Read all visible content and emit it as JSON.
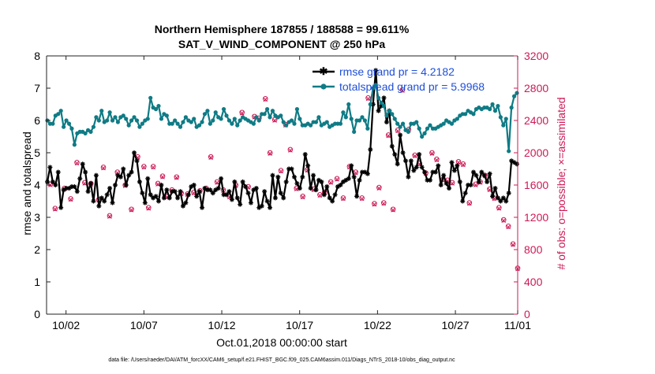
{
  "chart_data": {
    "type": "line",
    "title": "Northern Hemisphere 187855 / 188588 = 99.611%",
    "subtitle": "SAT_V_WIND_COMPONENT @ 250 hPa",
    "xlabel": "Oct.01,2018 00:00:00 start",
    "ylabel_left": "rmse and totalspread",
    "ylabel_right": "# of obs: o=possible; ×=assimilated",
    "xlim": [
      0.75,
      31.0
    ],
    "ylim_left": [
      0,
      8
    ],
    "ylim_right": [
      0,
      3200
    ],
    "x_ticks": [
      {
        "label": "10/02",
        "x": 2
      },
      {
        "label": "10/07",
        "x": 7
      },
      {
        "label": "10/12",
        "x": 12
      },
      {
        "label": "10/17",
        "x": 17
      },
      {
        "label": "10/22",
        "x": 22
      },
      {
        "label": "10/27",
        "x": 27
      },
      {
        "label": "11/01",
        "x": 32
      }
    ],
    "y_ticks_left": [
      "0",
      "1",
      "2",
      "3",
      "4",
      "5",
      "6",
      "7",
      "8"
    ],
    "y_ticks_right": [
      "0",
      "400",
      "800",
      "1200",
      "1600",
      "2000",
      "2400",
      "2800",
      "3200"
    ],
    "grid": false,
    "legend_position": "top-right",
    "series": [
      {
        "name": "rmse grand pr = 4.2182",
        "axis": "left",
        "color": "#000000",
        "marker": "asterisk",
        "values": [
          4.1,
          4.55,
          4.1,
          4.0,
          4.4,
          3.3,
          3.85,
          3.9,
          3.9,
          3.95,
          3.95,
          3.8,
          4.2,
          4.65,
          4.4,
          3.8,
          4.05,
          3.5,
          4.3,
          3.35,
          3.6,
          3.5,
          3.7,
          3.9,
          3.45,
          4.0,
          4.3,
          4.25,
          4.5,
          4.0,
          4.3,
          4.4,
          5.0,
          4.75,
          4.1,
          3.75,
          3.45,
          4.2,
          3.7,
          3.6,
          3.65,
          3.5,
          4.0,
          3.6,
          3.85,
          3.6,
          3.8,
          3.8,
          3.6,
          3.8,
          3.35,
          3.45,
          3.7,
          3.95,
          4.0,
          3.65,
          3.8,
          3.3,
          3.9,
          3.85,
          3.85,
          3.75,
          3.85,
          3.9,
          4.2,
          3.7,
          3.7,
          3.8,
          3.55,
          4.1,
          3.6,
          3.4,
          4.1,
          3.95,
          3.75,
          3.45,
          3.85,
          3.9,
          3.3,
          3.35,
          3.8,
          3.5,
          3.3,
          4.3,
          3.6,
          4.25,
          3.75,
          3.6,
          4.1,
          4.5,
          4.5,
          4.25,
          4.05,
          3.9,
          4.25,
          4.95,
          4.6,
          3.9,
          4.3,
          3.85,
          4.15,
          4.1,
          3.7,
          3.95,
          3.6,
          3.5,
          3.7,
          3.95,
          4.0,
          4.1,
          4.15,
          4.2,
          4.6,
          4.25,
          3.65,
          4.15,
          4.4,
          4.4,
          4.35,
          5.1,
          6.5,
          7.55,
          6.3,
          6.45,
          6.7,
          5.95,
          6.3,
          5.2,
          4.95,
          4.65,
          5.55,
          5.0,
          4.75,
          4.25,
          4.75,
          4.45,
          4.55,
          4.95,
          4.55,
          4.4,
          4.15,
          4.15,
          4.4,
          4.4,
          4.6,
          4.0,
          4.3,
          4.05,
          3.9,
          4.7,
          4.45,
          4.6,
          4.1,
          3.5,
          3.75,
          4.0,
          4.0,
          4.4,
          4.3,
          4.1,
          4.4,
          4.3,
          4.1,
          4.35,
          3.65,
          3.9,
          3.6,
          3.5,
          3.6,
          3.5,
          3.75,
          4.75,
          4.7,
          4.65
        ]
      },
      {
        "name": "totalspread grand pr = 5.9968",
        "axis": "left",
        "color": "#0f7b85",
        "marker": "circle",
        "values": [
          6.0,
          5.9,
          5.9,
          6.15,
          6.2,
          6.3,
          5.8,
          6.0,
          5.9,
          5.75,
          5.25,
          5.6,
          5.65,
          5.65,
          5.6,
          5.7,
          5.65,
          5.8,
          6.1,
          6.0,
          6.3,
          5.95,
          6.0,
          6.25,
          6.0,
          6.1,
          5.95,
          6.1,
          6.15,
          6.05,
          5.85,
          6.0,
          6.1,
          6.0,
          5.8,
          5.9,
          6.0,
          6.05,
          6.7,
          6.4,
          6.35,
          6.45,
          6.05,
          6.2,
          6.15,
          5.9,
          5.9,
          6.0,
          5.9,
          5.8,
          5.95,
          6.1,
          6.0,
          5.95,
          6.05,
          5.8,
          5.85,
          5.95,
          6.2,
          6.3,
          5.9,
          6.0,
          6.25,
          6.1,
          6.05,
          6.35,
          6.15,
          6.0,
          5.9,
          6.05,
          5.85,
          6.0,
          6.1,
          6.05,
          6.0,
          5.95,
          5.9,
          6.1,
          6.0,
          6.2,
          6.2,
          6.35,
          6.1,
          6.3,
          6.15,
          6.1,
          6.15,
          5.95,
          5.85,
          5.95,
          6.0,
          5.9,
          6.35,
          6.05,
          5.85,
          5.85,
          5.9,
          5.85,
          5.95,
          5.95,
          6.1,
          5.85,
          5.9,
          5.95,
          5.8,
          5.85,
          5.9,
          5.9,
          5.9,
          6.25,
          6.1,
          6.5,
          6.05,
          5.65,
          6.0,
          6.0,
          6.1,
          6.0,
          5.75,
          6.5,
          7.0,
          7.1,
          6.7,
          6.55,
          6.45,
          6.15,
          6.3,
          6.2,
          6.05,
          5.9,
          5.8,
          5.9,
          5.7,
          5.65,
          5.9,
          5.9,
          5.95,
          5.75,
          5.5,
          5.6,
          5.75,
          5.85,
          5.75,
          5.75,
          5.8,
          5.85,
          5.9,
          6.0,
          5.95,
          5.9,
          6.0,
          6.05,
          6.15,
          6.2,
          6.2,
          6.3,
          6.25,
          6.2,
          6.35,
          6.4,
          6.35,
          6.4,
          6.4,
          6.35,
          6.5,
          6.3,
          6.45,
          6.1,
          5.85,
          6.05,
          5.05,
          6.4,
          6.75,
          6.85
        ]
      },
      {
        "name": "obs possible",
        "axis": "right",
        "color": "#cc1a55",
        "marker": "open-circle",
        "x": [
          1.0,
          1.3,
          1.9,
          2.3,
          2.7,
          3.2,
          3.6,
          4.1,
          4.4,
          4.8,
          5.3,
          5.8,
          6.2,
          6.6,
          7.0,
          7.3,
          7.6,
          7.9,
          8.2,
          8.5,
          8.8,
          9.1,
          9.4,
          9.8,
          10.2,
          10.6,
          11.0,
          11.3,
          11.7,
          12.1,
          12.5,
          12.9,
          13.3,
          13.7,
          14.1,
          14.4,
          14.8,
          15.1,
          15.4,
          15.8,
          16.1,
          16.4,
          16.8,
          17.2,
          17.5,
          17.9,
          18.3,
          18.6,
          19.0,
          19.4,
          19.8,
          20.2,
          20.6,
          21.0,
          21.4,
          21.8,
          22.1,
          22.4,
          22.7,
          23.0,
          23.3,
          23.6,
          24.0,
          24.4,
          24.7,
          25.1,
          25.5,
          25.8,
          26.2,
          26.5,
          26.8,
          27.2,
          27.5,
          27.9,
          28.3,
          28.6,
          28.9,
          29.2,
          29.5,
          29.8,
          30.1,
          30.4,
          30.7,
          31.0
        ],
        "values": [
          1610,
          1310,
          1560,
          1430,
          1880,
          1630,
          1620,
          1420,
          1820,
          1220,
          1760,
          1600,
          1300,
          1950,
          1830,
          1320,
          1830,
          1620,
          1710,
          1460,
          1540,
          1700,
          1500,
          1490,
          1510,
          1530,
          1560,
          1950,
          1640,
          1540,
          1460,
          1600,
          2500,
          1580,
          2450,
          2430,
          2670,
          2000,
          2410,
          1780,
          2350,
          2040,
          1560,
          1460,
          1790,
          1550,
          1480,
          1510,
          1640,
          1680,
          1440,
          1830,
          1760,
          1440,
          2680,
          1370,
          1570,
          1380,
          2220,
          1300,
          2280,
          2780,
          2290,
          1970,
          1870,
          1750,
          2000,
          1920,
          1670,
          1660,
          1630,
          1890,
          1860,
          1380,
          1610,
          1640,
          1720,
          1550,
          1440,
          1320,
          1170,
          1090,
          870,
          570
        ]
      },
      {
        "name": "obs assimilated",
        "axis": "right",
        "color": "#cc1a55",
        "marker": "cross",
        "x": [
          1.0,
          1.3,
          1.9,
          2.3,
          2.7,
          3.2,
          3.6,
          4.1,
          4.4,
          4.8,
          5.3,
          5.8,
          6.2,
          6.6,
          7.0,
          7.3,
          7.6,
          7.9,
          8.2,
          8.5,
          8.8,
          9.1,
          9.4,
          9.8,
          10.2,
          10.6,
          11.0,
          11.3,
          11.7,
          12.1,
          12.5,
          12.9,
          13.3,
          13.7,
          14.1,
          14.4,
          14.8,
          15.1,
          15.4,
          15.8,
          16.1,
          16.4,
          16.8,
          17.2,
          17.5,
          17.9,
          18.3,
          18.6,
          19.0,
          19.4,
          19.8,
          20.2,
          20.6,
          21.0,
          21.4,
          21.8,
          22.1,
          22.4,
          22.7,
          23.0,
          23.3,
          23.6,
          24.0,
          24.4,
          24.7,
          25.1,
          25.5,
          25.8,
          26.2,
          26.5,
          26.8,
          27.2,
          27.5,
          27.9,
          28.3,
          28.6,
          28.9,
          29.2,
          29.5,
          29.8,
          30.1,
          30.4,
          30.7,
          31.0
        ],
        "values": [
          1600,
          1300,
          1550,
          1420,
          1870,
          1620,
          1610,
          1410,
          1810,
          1210,
          1750,
          1590,
          1290,
          1940,
          1820,
          1310,
          1820,
          1610,
          1700,
          1450,
          1530,
          1690,
          1490,
          1480,
          1500,
          1520,
          1550,
          1940,
          1630,
          1530,
          1450,
          1590,
          2490,
          1570,
          2440,
          2420,
          2660,
          1990,
          2400,
          1770,
          2340,
          2030,
          1550,
          1450,
          1780,
          1540,
          1470,
          1500,
          1630,
          1670,
          1430,
          1820,
          1750,
          1430,
          2670,
          1360,
          1560,
          1370,
          2210,
          1290,
          2270,
          2770,
          2280,
          1960,
          1860,
          1740,
          1990,
          1910,
          1660,
          1650,
          1620,
          1880,
          1850,
          1370,
          1600,
          1630,
          1710,
          1540,
          1430,
          1310,
          1160,
          1080,
          860,
          560
        ]
      }
    ]
  },
  "footer": {
    "data_file": "data file: /Users/raeder/DAI/ATM_forcXX/CAM6_setup/f.e21.FHIST_BGC.f09_025.CAM6assim.011/Diags_NTrS_2018-10/obs_diag_output.nc"
  }
}
